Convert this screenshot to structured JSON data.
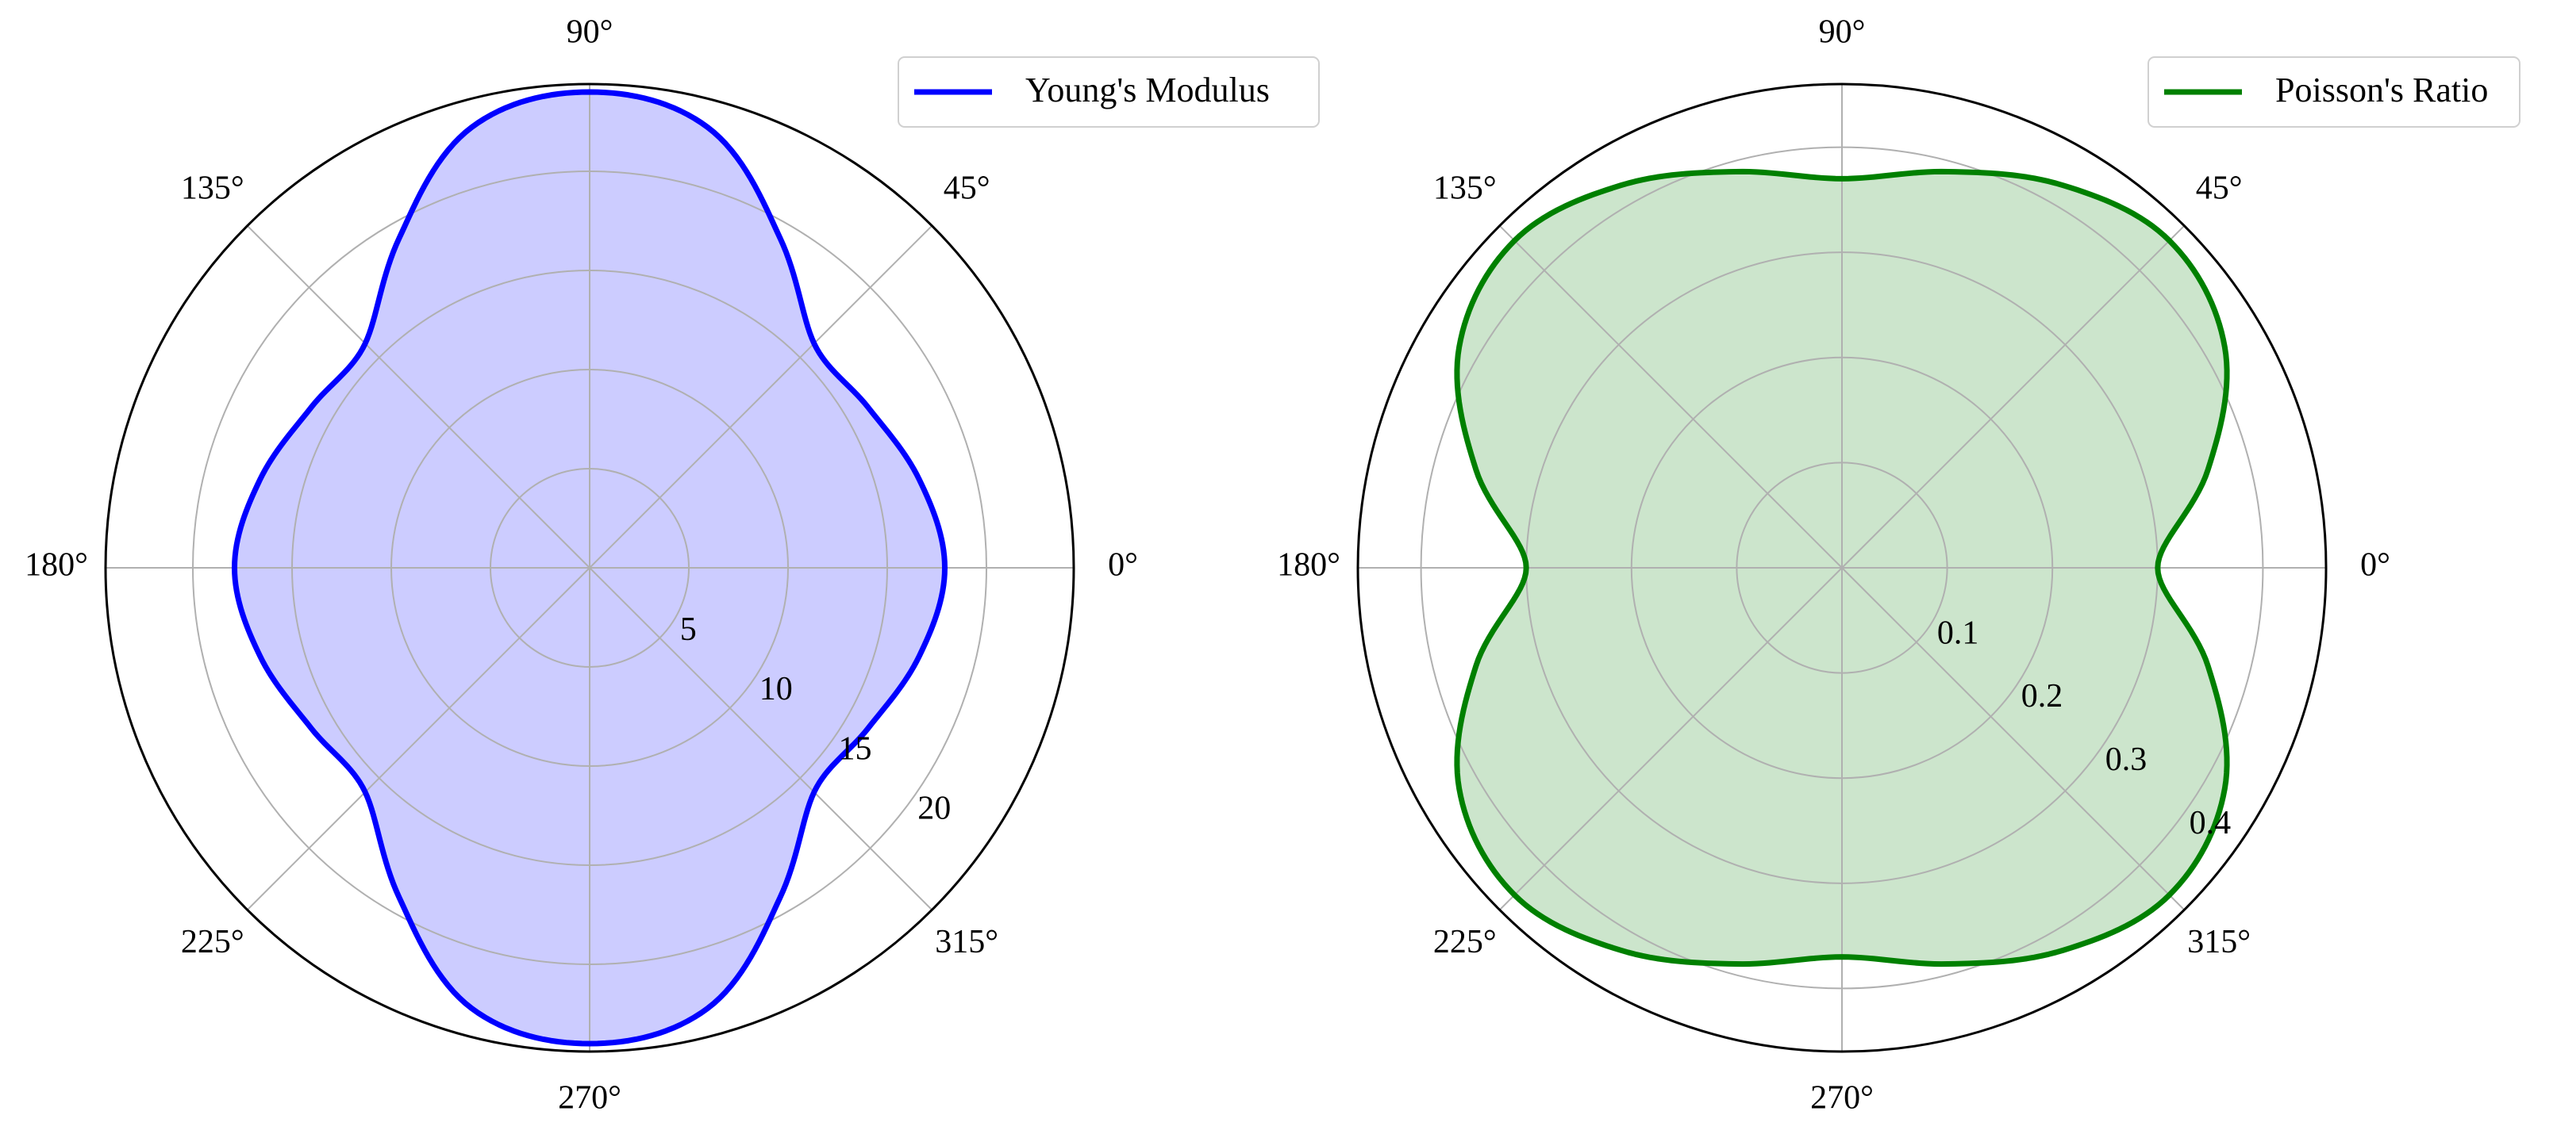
{
  "chart_data": [
    {
      "type": "polar-area",
      "theta_tick_labels": [
        "0°",
        "45°",
        "90°",
        "135°",
        "180°",
        "225°",
        "270°",
        "315°"
      ],
      "theta_ticks_deg": [
        0,
        45,
        90,
        135,
        180,
        225,
        270,
        315
      ],
      "r_ticks": [
        5,
        10,
        15,
        20
      ],
      "r_tick_labels": [
        "5",
        "10",
        "15",
        "20"
      ],
      "rlim": [
        0,
        24.4
      ],
      "grid": true,
      "legend_position": "upper-right",
      "series": [
        {
          "name": "Young's Modulus",
          "color": "#0000ff",
          "fill_color": "#ccccff",
          "theta_deg": [
            0,
            15,
            30,
            45,
            60,
            75,
            90,
            105,
            120,
            135,
            150,
            165,
            180,
            195,
            210,
            225,
            240,
            255,
            270,
            285,
            300,
            315,
            330,
            345
          ],
          "r": [
            17.9,
            17.2,
            16.2,
            16.0,
            19.2,
            23.0,
            24.0,
            23.0,
            19.2,
            16.0,
            16.2,
            17.2,
            17.9,
            17.2,
            16.2,
            16.0,
            19.2,
            23.0,
            24.0,
            23.0,
            19.2,
            16.0,
            16.2,
            17.2
          ]
        }
      ]
    },
    {
      "type": "polar-area",
      "theta_tick_labels": [
        "0°",
        "45°",
        "90°",
        "135°",
        "180°",
        "225°",
        "270°",
        "315°"
      ],
      "theta_ticks_deg": [
        0,
        45,
        90,
        135,
        180,
        225,
        270,
        315
      ],
      "r_ticks": [
        0.1,
        0.2,
        0.3,
        0.4
      ],
      "r_tick_labels": [
        "0.1",
        "0.2",
        "0.3",
        "0.4"
      ],
      "rlim": [
        0,
        0.46
      ],
      "grid": true,
      "legend_position": "upper-right",
      "series": [
        {
          "name": "Poisson's Ratio",
          "color": "#008000",
          "fill_color": "#cce5cc",
          "theta_deg": [
            0,
            15,
            30,
            45,
            60,
            75,
            90,
            105,
            120,
            135,
            150,
            165,
            180,
            195,
            210,
            225,
            240,
            255,
            270,
            285,
            300,
            315,
            330,
            345
          ],
          "r": [
            0.3,
            0.36,
            0.42,
            0.44,
            0.42,
            0.39,
            0.37,
            0.39,
            0.42,
            0.44,
            0.42,
            0.36,
            0.3,
            0.36,
            0.42,
            0.44,
            0.42,
            0.39,
            0.37,
            0.39,
            0.42,
            0.44,
            0.42,
            0.36
          ]
        }
      ]
    }
  ]
}
